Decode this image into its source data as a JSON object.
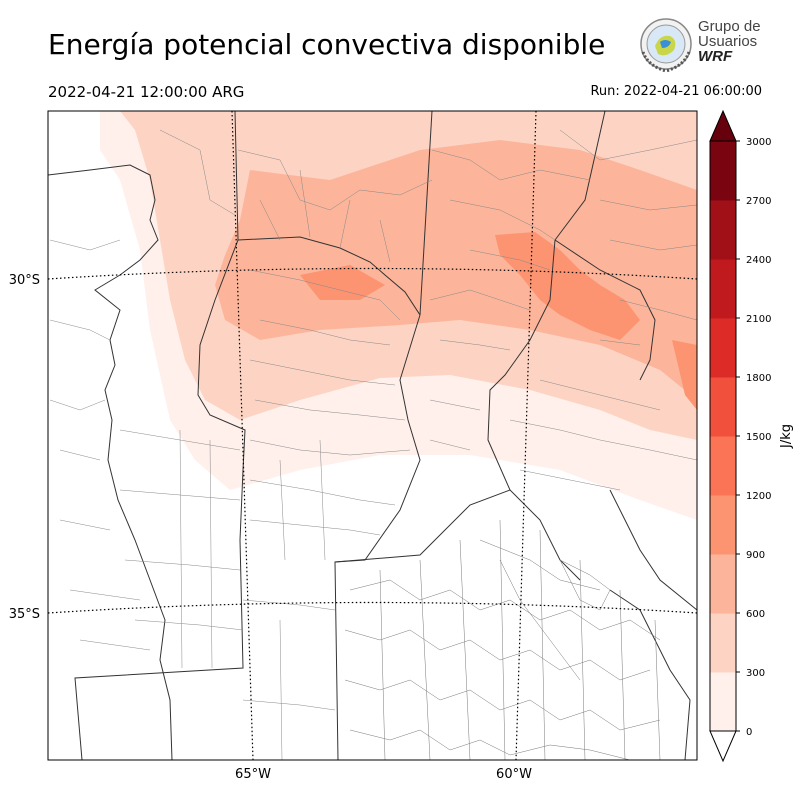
{
  "header": {
    "title": "Energía potencial convectiva disponible",
    "valid_time": "2022-04-21 12:00:00 ARG",
    "run_time": "Run: 2022-04-21 06:00:00"
  },
  "logo": {
    "line1": "Grupo de",
    "line2": "Usuarios",
    "line3": "WRF"
  },
  "map": {
    "lat_labels": [
      "30°S",
      "35°S"
    ],
    "lon_labels": [
      "65°W",
      "60°W"
    ]
  },
  "colorbar": {
    "unit": "J/kg",
    "ticks": [
      "0",
      "300",
      "600",
      "900",
      "1200",
      "1500",
      "1800",
      "2100",
      "2400",
      "2700",
      "3000"
    ],
    "colors": [
      "#fff0eb",
      "#fdd4c4",
      "#fcb59a",
      "#fc9471",
      "#fa7455",
      "#f0503c",
      "#dd2c27",
      "#c01a1e",
      "#a10f17",
      "#7a0510"
    ],
    "extend_color": "#67000d"
  }
}
